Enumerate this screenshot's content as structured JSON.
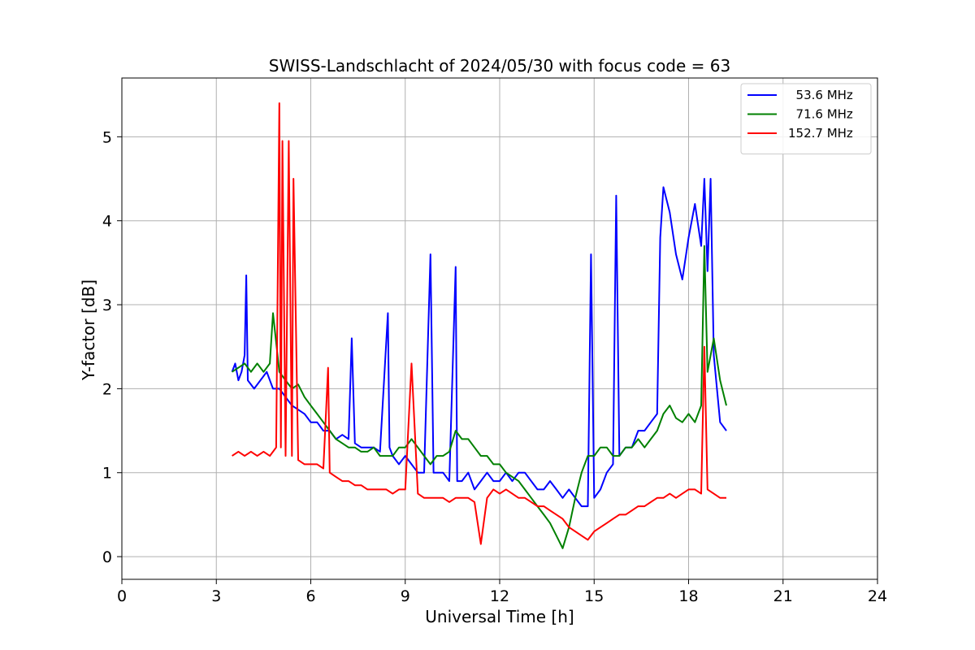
{
  "chart_data": {
    "type": "line",
    "title": "SWISS-Landschlacht of 2024/05/30 with focus code = 63",
    "xlabel": "Universal Time [h]",
    "ylabel": "Y-factor [dB]",
    "xlim": [
      0,
      24
    ],
    "ylim": [
      -0.27,
      5.7
    ],
    "xticks": [
      0,
      3,
      6,
      9,
      12,
      15,
      18,
      21,
      24
    ],
    "yticks": [
      0,
      1,
      2,
      3,
      4,
      5
    ],
    "grid": true,
    "legend_position": "top-right",
    "series": [
      {
        "name": "  53.6 MHz",
        "color": "#0000ff",
        "x": [
          3.5,
          3.6,
          3.7,
          3.8,
          3.9,
          3.95,
          4.0,
          4.2,
          4.4,
          4.6,
          4.8,
          5.0,
          5.2,
          5.4,
          5.6,
          5.8,
          6.0,
          6.2,
          6.4,
          6.6,
          6.8,
          7.0,
          7.2,
          7.3,
          7.4,
          7.6,
          7.8,
          8.0,
          8.2,
          8.45,
          8.5,
          8.6,
          8.8,
          9.0,
          9.2,
          9.4,
          9.6,
          9.8,
          9.9,
          10.0,
          10.2,
          10.4,
          10.6,
          10.65,
          10.8,
          11.0,
          11.2,
          11.4,
          11.6,
          11.8,
          12.0,
          12.2,
          12.4,
          12.6,
          12.8,
          13.0,
          13.2,
          13.4,
          13.6,
          13.8,
          14.0,
          14.2,
          14.4,
          14.6,
          14.8,
          14.9,
          15.0,
          15.2,
          15.4,
          15.6,
          15.7,
          15.8,
          16.0,
          16.2,
          16.4,
          16.6,
          16.8,
          17.0,
          17.1,
          17.2,
          17.4,
          17.6,
          17.8,
          18.0,
          18.2,
          18.4,
          18.5,
          18.6,
          18.7,
          18.8,
          19.0,
          19.2
        ],
        "values": [
          2.2,
          2.3,
          2.1,
          2.2,
          2.4,
          3.35,
          2.1,
          2.0,
          2.1,
          2.2,
          2.0,
          2.0,
          1.9,
          1.8,
          1.75,
          1.7,
          1.6,
          1.6,
          1.5,
          1.5,
          1.4,
          1.45,
          1.4,
          2.6,
          1.35,
          1.3,
          1.3,
          1.3,
          1.25,
          2.9,
          1.3,
          1.2,
          1.1,
          1.2,
          1.1,
          1.0,
          1.0,
          3.6,
          1.0,
          1.0,
          1.0,
          0.9,
          3.45,
          0.9,
          0.9,
          1.0,
          0.8,
          0.9,
          1.0,
          0.9,
          0.9,
          1.0,
          0.9,
          1.0,
          1.0,
          0.9,
          0.8,
          0.8,
          0.9,
          0.8,
          0.7,
          0.8,
          0.7,
          0.6,
          0.6,
          3.6,
          0.7,
          0.8,
          1.0,
          1.1,
          4.3,
          1.2,
          1.3,
          1.3,
          1.5,
          1.5,
          1.6,
          1.7,
          3.8,
          4.4,
          4.1,
          3.6,
          3.3,
          3.8,
          4.2,
          3.7,
          4.5,
          3.4,
          4.5,
          2.4,
          1.6,
          1.5
        ]
      },
      {
        "name": "  71.6 MHz",
        "color": "#008000",
        "x": [
          3.5,
          3.7,
          3.9,
          4.1,
          4.3,
          4.5,
          4.7,
          4.8,
          5.0,
          5.2,
          5.4,
          5.6,
          5.8,
          6.0,
          6.2,
          6.4,
          6.6,
          6.8,
          7.0,
          7.2,
          7.4,
          7.6,
          7.8,
          8.0,
          8.2,
          8.4,
          8.6,
          8.8,
          9.0,
          9.2,
          9.4,
          9.6,
          9.8,
          10.0,
          10.2,
          10.4,
          10.6,
          10.8,
          11.0,
          11.2,
          11.4,
          11.6,
          11.8,
          12.0,
          12.2,
          12.4,
          12.6,
          12.8,
          13.0,
          13.2,
          13.4,
          13.6,
          13.8,
          14.0,
          14.2,
          14.4,
          14.6,
          14.8,
          15.0,
          15.2,
          15.4,
          15.6,
          15.8,
          16.0,
          16.2,
          16.4,
          16.6,
          16.8,
          17.0,
          17.2,
          17.4,
          17.6,
          17.8,
          18.0,
          18.2,
          18.4,
          18.5,
          18.6,
          18.8,
          19.0,
          19.2
        ],
        "values": [
          2.2,
          2.25,
          2.3,
          2.2,
          2.3,
          2.2,
          2.3,
          2.9,
          2.2,
          2.1,
          2.0,
          2.05,
          1.9,
          1.8,
          1.7,
          1.6,
          1.5,
          1.4,
          1.35,
          1.3,
          1.3,
          1.25,
          1.25,
          1.3,
          1.2,
          1.2,
          1.2,
          1.3,
          1.3,
          1.4,
          1.3,
          1.2,
          1.1,
          1.2,
          1.2,
          1.25,
          1.5,
          1.4,
          1.4,
          1.3,
          1.2,
          1.2,
          1.1,
          1.1,
          1.0,
          0.95,
          0.9,
          0.8,
          0.7,
          0.6,
          0.5,
          0.4,
          0.25,
          0.1,
          0.35,
          0.7,
          1.0,
          1.2,
          1.2,
          1.3,
          1.3,
          1.2,
          1.2,
          1.3,
          1.3,
          1.4,
          1.3,
          1.4,
          1.5,
          1.7,
          1.8,
          1.65,
          1.6,
          1.7,
          1.6,
          1.8,
          3.7,
          2.2,
          2.6,
          2.1,
          1.8
        ]
      },
      {
        "name": "152.7 MHz",
        "color": "#ff0000",
        "x": [
          3.5,
          3.7,
          3.9,
          4.1,
          4.3,
          4.5,
          4.7,
          4.9,
          5.0,
          5.05,
          5.1,
          5.2,
          5.3,
          5.4,
          5.45,
          5.6,
          5.8,
          6.0,
          6.2,
          6.4,
          6.55,
          6.6,
          6.8,
          7.0,
          7.2,
          7.4,
          7.6,
          7.8,
          8.0,
          8.2,
          8.4,
          8.6,
          8.8,
          9.0,
          9.2,
          9.4,
          9.6,
          9.8,
          10.0,
          10.2,
          10.4,
          10.6,
          10.8,
          11.0,
          11.2,
          11.4,
          11.6,
          11.8,
          12.0,
          12.2,
          12.4,
          12.6,
          12.8,
          13.0,
          13.2,
          13.4,
          13.6,
          13.8,
          14.0,
          14.2,
          14.4,
          14.6,
          14.8,
          15.0,
          15.2,
          15.4,
          15.6,
          15.8,
          16.0,
          16.2,
          16.4,
          16.6,
          16.8,
          17.0,
          17.2,
          17.4,
          17.6,
          17.8,
          18.0,
          18.2,
          18.4,
          18.5,
          18.6,
          18.8,
          19.0,
          19.2
        ],
        "values": [
          1.2,
          1.25,
          1.2,
          1.25,
          1.2,
          1.25,
          1.2,
          1.3,
          5.4,
          1.3,
          4.95,
          1.2,
          4.95,
          1.2,
          4.5,
          1.15,
          1.1,
          1.1,
          1.1,
          1.05,
          2.25,
          1.0,
          0.95,
          0.9,
          0.9,
          0.85,
          0.85,
          0.8,
          0.8,
          0.8,
          0.8,
          0.75,
          0.8,
          0.8,
          2.3,
          0.75,
          0.7,
          0.7,
          0.7,
          0.7,
          0.65,
          0.7,
          0.7,
          0.7,
          0.65,
          0.15,
          0.7,
          0.8,
          0.75,
          0.8,
          0.75,
          0.7,
          0.7,
          0.65,
          0.6,
          0.6,
          0.55,
          0.5,
          0.45,
          0.35,
          0.3,
          0.25,
          0.2,
          0.3,
          0.35,
          0.4,
          0.45,
          0.5,
          0.5,
          0.55,
          0.6,
          0.6,
          0.65,
          0.7,
          0.7,
          0.75,
          0.7,
          0.75,
          0.8,
          0.8,
          0.75,
          2.5,
          0.8,
          0.75,
          0.7,
          0.7
        ]
      }
    ]
  }
}
